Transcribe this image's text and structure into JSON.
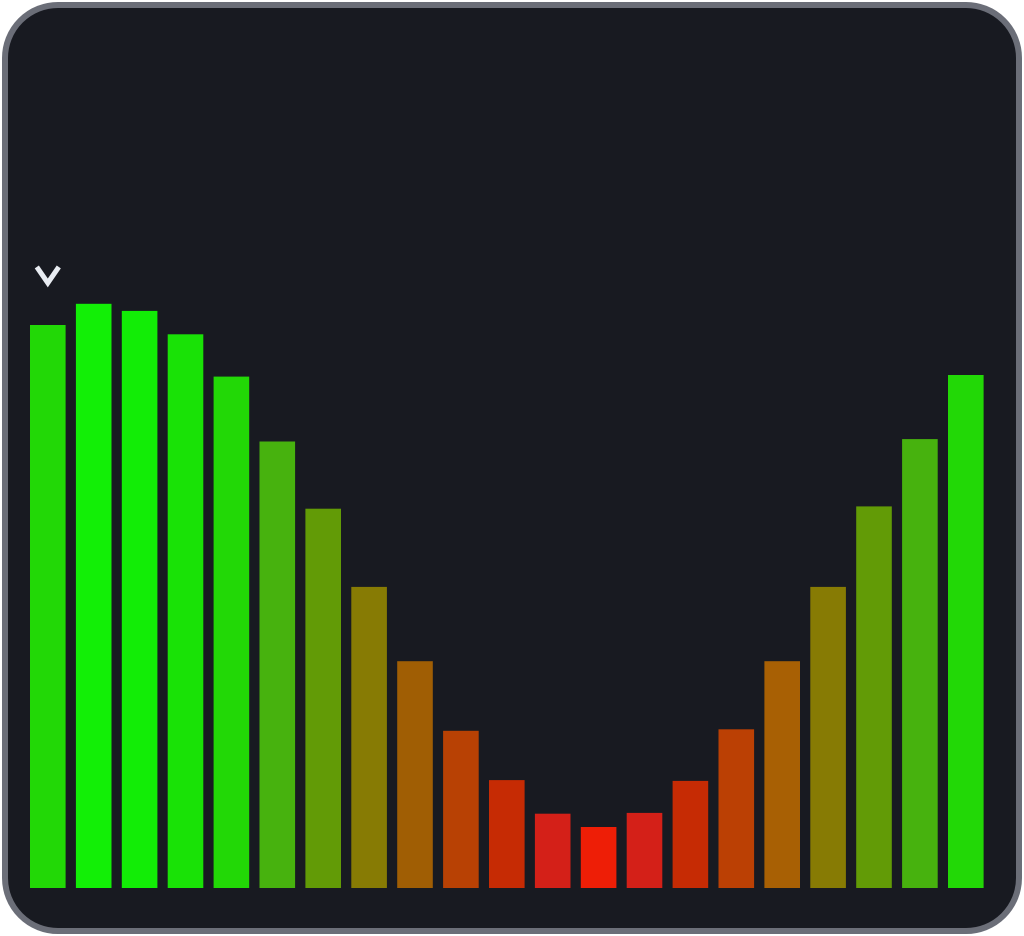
{
  "chart_data": {
    "type": "bar",
    "title": "",
    "xlabel": "",
    "ylabel": "",
    "ylim": [
      0,
      1
    ],
    "grid": false,
    "legend": "none",
    "values": [
      0.72,
      0.747,
      0.738,
      0.708,
      0.654,
      0.571,
      0.485,
      0.385,
      0.29,
      0.201,
      0.138,
      0.095,
      0.078,
      0.096,
      0.137,
      0.203,
      0.29,
      0.385,
      0.488,
      0.574,
      0.656
    ],
    "bar_colors": [
      "#22d806",
      "#12ef06",
      "#12ed06",
      "#19e206",
      "#22d806",
      "#47b20e",
      "#629b06",
      "#877b04",
      "#a05e04",
      "#b84104",
      "#c62b04",
      "#d42018",
      "#ee1e06",
      "#d42018",
      "#c62b04",
      "#bb4004",
      "#a86004",
      "#877b04",
      "#629b06",
      "#47b20e",
      "#22d806"
    ],
    "marker": {
      "bar_index": 0,
      "icon": "chevron-down-icon",
      "color": "#e8ecf2"
    }
  },
  "colors": {
    "background": "#181a21",
    "border": "#6b6e78"
  }
}
